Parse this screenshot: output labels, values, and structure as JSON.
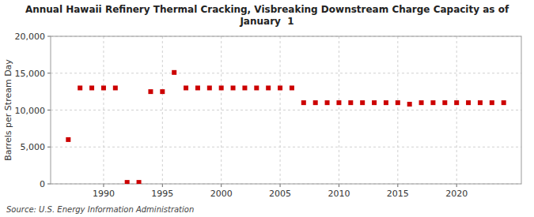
{
  "chart_data": {
    "type": "scatter",
    "title": "Annual Hawaii Refinery Thermal Cracking, Visbreaking Downstream Charge Capacity as of\nJanuary  1",
    "y_label": "Barrels per Stream Day",
    "annotations": [
      "Source: U.S. Energy Information Administration"
    ],
    "x": [
      1987,
      1988,
      1989,
      1990,
      1991,
      1992,
      1993,
      1994,
      1995,
      1996,
      1997,
      1998,
      1999,
      2000,
      2001,
      2002,
      2003,
      2004,
      2005,
      2006,
      2007,
      2008,
      2009,
      2010,
      2011,
      2012,
      2013,
      2014,
      2015,
      2016,
      2017,
      2018,
      2019,
      2020,
      2021,
      2022,
      2023,
      2024
    ],
    "values": [
      6000,
      13000,
      13000,
      13000,
      13000,
      200,
      200,
      12500,
      12500,
      15100,
      13000,
      13000,
      13000,
      13000,
      13000,
      13000,
      13000,
      13000,
      13000,
      13000,
      11000,
      11000,
      11000,
      11000,
      11000,
      11000,
      11000,
      11000,
      11000,
      10800,
      11000,
      11000,
      11000,
      11000,
      11000,
      11000,
      11000,
      11000
    ],
    "color": "#cc0000",
    "marker": "square",
    "xlim": [
      1985.5,
      2025.5
    ],
    "xticks": [
      1990,
      1995,
      2000,
      2005,
      2010,
      2015,
      2020
    ],
    "ylim": [
      0,
      20000
    ],
    "yticks": [
      0,
      {
        "value": 5000,
        "label": "5,000"
      },
      {
        "value": 10000,
        "label": "10,000"
      },
      {
        "value": 15000,
        "label": "15,000"
      },
      {
        "value": 20000,
        "label": "20,000"
      }
    ],
    "grid": true
  }
}
